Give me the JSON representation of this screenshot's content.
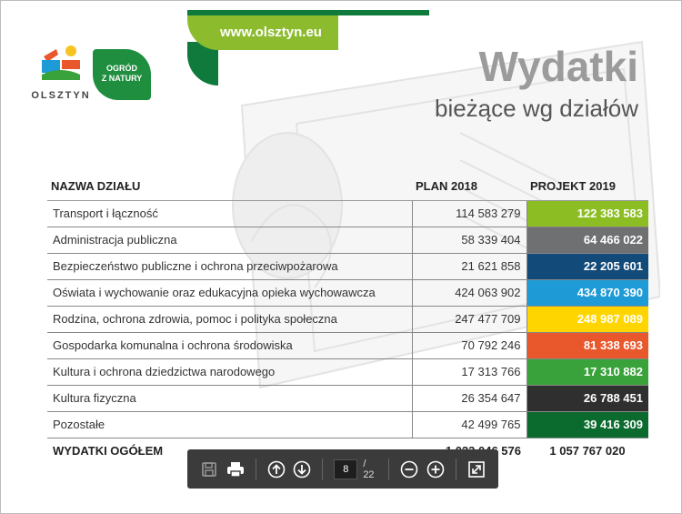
{
  "header": {
    "url": "www.olsztyn.eu",
    "city_logo_text": "OLSZTYN",
    "garden_logo_line1": "OGRÓD",
    "garden_logo_line2": "Z NATURY",
    "title": "Wydatki",
    "subtitle": "bieżące wg działów"
  },
  "table": {
    "headers": {
      "name": "NAZWA DZIAŁU",
      "plan": "PLAN 2018",
      "project": "PROJEKT 2019"
    },
    "rows": [
      {
        "name": "Transport i łączność",
        "plan": "114 583 279",
        "project": "122 383 583",
        "color": "#8cbd22"
      },
      {
        "name": "Administracja publiczna",
        "plan": "58 339 404",
        "project": "64 466 022",
        "color": "#6f7072"
      },
      {
        "name": "Bezpieczeństwo publiczne i ochrona przeciwpożarowa",
        "plan": "21 621 858",
        "project": "22 205 601",
        "color": "#124a7a"
      },
      {
        "name": "Oświata i wychowanie oraz edukacyjna opieka wychowawcza",
        "plan": "424 063 902",
        "project": "434 870 390",
        "color": "#1e9ad6"
      },
      {
        "name": "Rodzina, ochrona zdrowia, pomoc i polityka społeczna",
        "plan": "247 477 709",
        "project": "248 987 089",
        "color": "#ffd500"
      },
      {
        "name": "Gospodarka komunalna i ochrona środowiska",
        "plan": "70 792 246",
        "project": "81 338 693",
        "color": "#e8582c"
      },
      {
        "name": "Kultura i ochrona dziedzictwa narodowego",
        "plan": "17 313 766",
        "project": "17 310 882",
        "color": "#3aa23a"
      },
      {
        "name": "Kultura fizyczna",
        "plan": "26 354 647",
        "project": "26 788 451",
        "color": "#2f2f30"
      },
      {
        "name": "Pozostałe",
        "plan": "42 499 765",
        "project": "39 416 309",
        "color": "#0b6b2e"
      }
    ],
    "total": {
      "name": "WYDATKI OGÓŁEM",
      "plan": "1 023 046 576",
      "project": "1 057 767 020"
    }
  },
  "toolbar": {
    "current_page": "8",
    "total_pages": "/ 22",
    "icons": [
      "save-icon",
      "print-icon",
      "page-up-icon",
      "page-down-icon",
      "zoom-out-icon",
      "zoom-in-icon",
      "fullscreen-icon"
    ]
  }
}
